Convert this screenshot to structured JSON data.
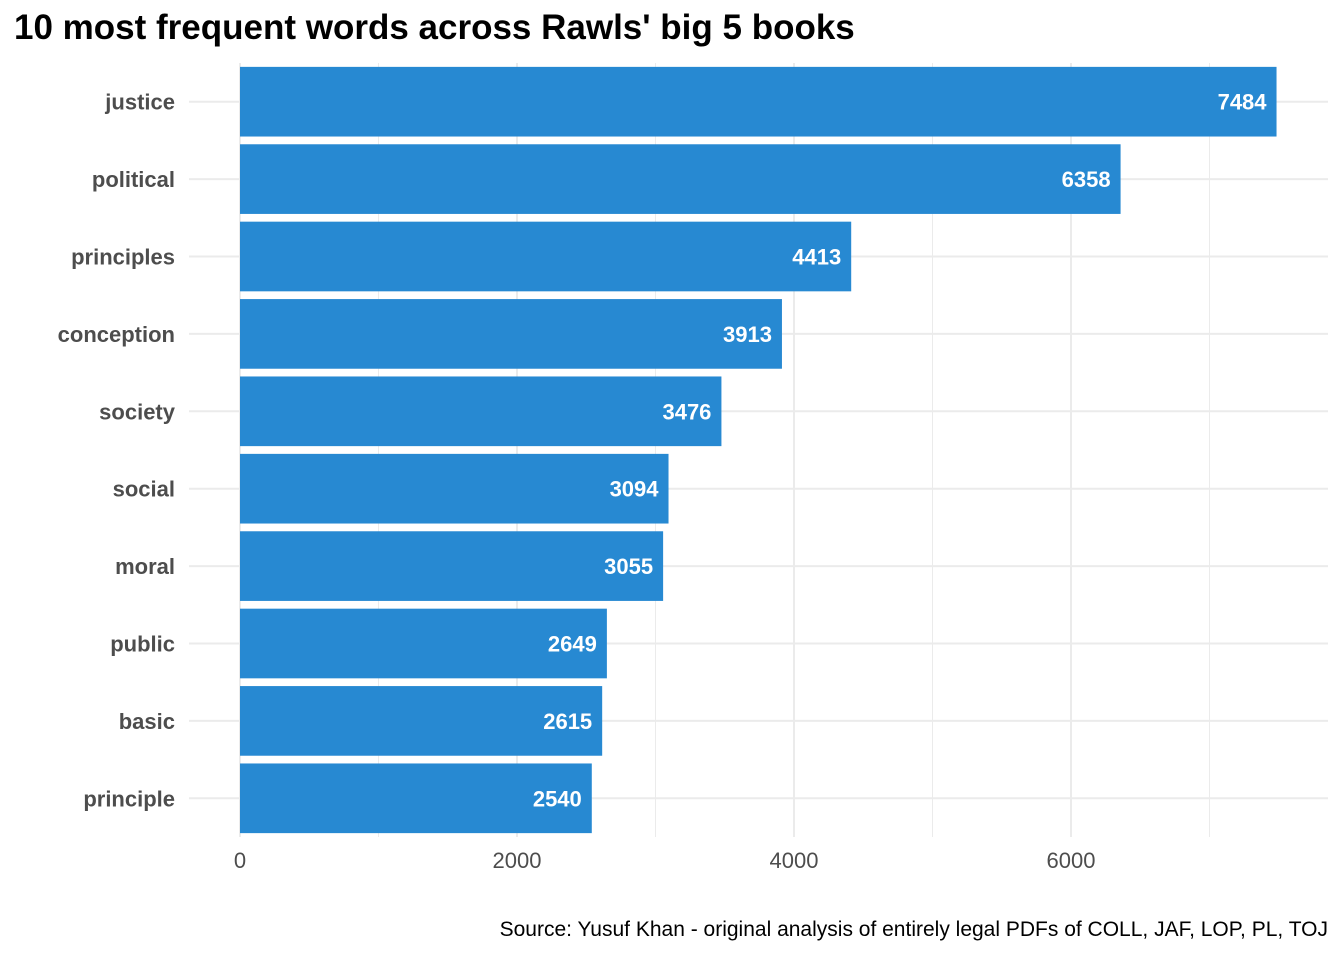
{
  "chart_data": {
    "type": "bar",
    "orientation": "horizontal",
    "title": "10 most frequent words across Rawls' big 5 books",
    "caption": "Source: Yusuf Khan - original analysis of entirely legal PDFs of COLL, JAF, LOP, PL, TOJ",
    "categories": [
      "justice",
      "political",
      "principles",
      "conception",
      "society",
      "social",
      "moral",
      "public",
      "basic",
      "principle"
    ],
    "values": [
      7484,
      6358,
      4413,
      3913,
      3476,
      3094,
      3055,
      2649,
      2615,
      2540
    ],
    "value_labels": [
      "7484",
      "6358",
      "4413",
      "3913",
      "3476",
      "3094",
      "3055",
      "2649",
      "2615",
      "2540"
    ],
    "x_ticks": [
      0,
      2000,
      4000,
      6000
    ],
    "x_tick_labels": [
      "0",
      "2000",
      "4000",
      "6000"
    ],
    "x_minor_ticks": [
      1000,
      3000,
      5000,
      7000
    ],
    "xlim": [
      0,
      7860
    ],
    "xlabel": "",
    "ylabel": "",
    "grid": true,
    "bar_color": "#2789d2",
    "value_label_color": "#ffffff",
    "grid_color": "#ebebeb"
  }
}
